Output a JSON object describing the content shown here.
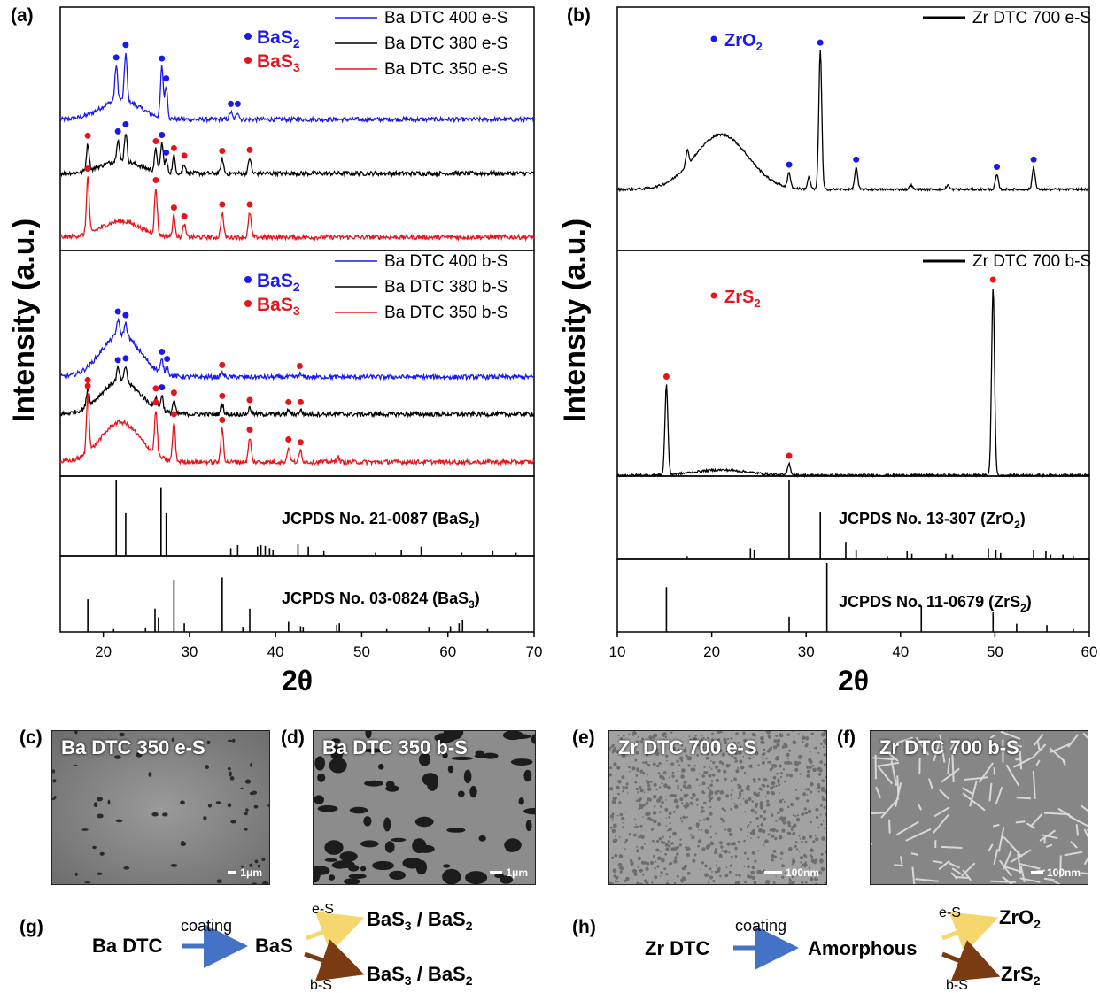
{
  "panels": {
    "a": "(a)",
    "b": "(b)",
    "c": "(c)",
    "d": "(d)",
    "e": "(e)",
    "f": "(f)",
    "g": "(g)",
    "h": "(h)"
  },
  "colors": {
    "blue": "#1a1aee",
    "red": "#e8141c",
    "black": "#000000",
    "arrow_blue": "#4472c4",
    "arrow_yellow": "#f5d76e",
    "arrow_brown": "#7a3b12"
  },
  "chart_data": [
    {
      "type": "line",
      "panel": "a",
      "ylabel": "Intensity (a.u.)",
      "xlabel": "2θ",
      "xlim": [
        15,
        70
      ],
      "xticks": [
        20,
        30,
        40,
        50,
        60,
        70
      ],
      "subplots": [
        {
          "name": "e-S",
          "legend_markers": [
            {
              "label_main": "BaS",
              "label_sub": "2",
              "color": "blue"
            },
            {
              "label_main": "BaS",
              "label_sub": "3",
              "color": "red"
            }
          ],
          "legend": [
            "Ba DTC 400 e-S",
            "Ba DTC 380 e-S",
            "Ba DTC 350 e-S"
          ],
          "series": [
            {
              "name": "Ba DTC 400 e-S",
              "color": "blue",
              "peaks": [
                [
                  21.5,
                  0.55
                ],
                [
                  22.6,
                  0.75
                ],
                [
                  26.8,
                  0.8
                ],
                [
                  27.3,
                  0.5
                ],
                [
                  34.8,
                  0.12
                ],
                [
                  35.6,
                  0.12
                ]
              ],
              "markers": [
                [
                  21.5,
                  "blue"
                ],
                [
                  22.6,
                  "blue"
                ],
                [
                  26.8,
                  "blue"
                ],
                [
                  27.3,
                  "blue"
                ],
                [
                  34.8,
                  "blue"
                ],
                [
                  35.6,
                  "blue"
                ]
              ]
            },
            {
              "name": "Ba DTC 380 e-S",
              "color": "black",
              "peaks": [
                [
                  18.2,
                  0.55
                ],
                [
                  21.7,
                  0.45
                ],
                [
                  22.6,
                  0.6
                ],
                [
                  26.1,
                  0.45
                ],
                [
                  26.8,
                  0.6
                ],
                [
                  27.3,
                  0.25
                ],
                [
                  28.2,
                  0.35
                ],
                [
                  29.4,
                  0.2
                ],
                [
                  33.8,
                  0.3
                ],
                [
                  37.0,
                  0.32
                ]
              ],
              "markers": [
                [
                  18.2,
                  "red"
                ],
                [
                  21.7,
                  "blue"
                ],
                [
                  22.6,
                  "blue"
                ],
                [
                  26.1,
                  "red"
                ],
                [
                  26.8,
                  "blue"
                ],
                [
                  27.3,
                  "blue"
                ],
                [
                  28.2,
                  "red"
                ],
                [
                  29.4,
                  "red"
                ],
                [
                  33.8,
                  "red"
                ],
                [
                  37.0,
                  "red"
                ]
              ]
            },
            {
              "name": "Ba DTC 350 e-S",
              "color": "red",
              "peaks": [
                [
                  18.2,
                  0.8
                ],
                [
                  26.1,
                  0.65
                ],
                [
                  28.2,
                  0.3
                ],
                [
                  29.4,
                  0.18
                ],
                [
                  33.8,
                  0.35
                ],
                [
                  37.0,
                  0.35
                ]
              ],
              "markers": [
                [
                  18.2,
                  "red"
                ],
                [
                  26.1,
                  "red"
                ],
                [
                  28.2,
                  "red"
                ],
                [
                  29.4,
                  "red"
                ],
                [
                  33.8,
                  "red"
                ],
                [
                  37.0,
                  "red"
                ]
              ]
            }
          ]
        },
        {
          "name": "b-S",
          "legend_markers": [
            {
              "label_main": "BaS",
              "label_sub": "2",
              "color": "blue"
            },
            {
              "label_main": "BaS",
              "label_sub": "3",
              "color": "red"
            }
          ],
          "legend": [
            "Ba DTC 400 b-S",
            "Ba DTC 380 b-S",
            "Ba DTC 350 b-S"
          ],
          "series": [
            {
              "name": "Ba DTC 400 b-S",
              "color": "blue",
              "peaks": [
                [
                  21.7,
                  0.3
                ],
                [
                  22.6,
                  0.25
                ],
                [
                  26.8,
                  0.25
                ],
                [
                  27.4,
                  0.15
                ],
                [
                  33.8,
                  0.08
                ],
                [
                  42.8,
                  0.06
                ]
              ],
              "markers": [
                [
                  21.7,
                  "blue"
                ],
                [
                  22.6,
                  "blue"
                ],
                [
                  26.8,
                  "blue"
                ],
                [
                  27.4,
                  "blue"
                ],
                [
                  33.8,
                  "red"
                ],
                [
                  42.8,
                  "red"
                ]
              ]
            },
            {
              "name": "Ba DTC 380 b-S",
              "color": "black",
              "peaks": [
                [
                  18.2,
                  0.35
                ],
                [
                  21.7,
                  0.25
                ],
                [
                  22.6,
                  0.3
                ],
                [
                  26.1,
                  0.22
                ],
                [
                  26.8,
                  0.3
                ],
                [
                  28.2,
                  0.25
                ],
                [
                  33.8,
                  0.2
                ],
                [
                  37.0,
                  0.12
                ],
                [
                  41.5,
                  0.08
                ],
                [
                  42.9,
                  0.08
                ]
              ],
              "markers": [
                [
                  18.2,
                  "red"
                ],
                [
                  21.7,
                  "blue"
                ],
                [
                  22.6,
                  "blue"
                ],
                [
                  26.1,
                  "red"
                ],
                [
                  26.8,
                  "blue"
                ],
                [
                  28.2,
                  "red"
                ],
                [
                  33.8,
                  "red"
                ],
                [
                  37.0,
                  "red"
                ],
                [
                  41.5,
                  "red"
                ],
                [
                  42.9,
                  "red"
                ]
              ]
            },
            {
              "name": "Ba DTC 350 b-S",
              "color": "red",
              "peaks": [
                [
                  18.2,
                  0.6
                ],
                [
                  26.1,
                  0.45
                ],
                [
                  28.2,
                  0.4
                ],
                [
                  33.8,
                  0.35
                ],
                [
                  37.0,
                  0.25
                ],
                [
                  41.5,
                  0.15
                ],
                [
                  42.9,
                  0.12
                ],
                [
                  47.2,
                  0.06
                ]
              ],
              "markers": [
                [
                  18.2,
                  "red"
                ],
                [
                  26.1,
                  "red"
                ],
                [
                  28.2,
                  "red"
                ],
                [
                  33.8,
                  "red"
                ],
                [
                  37.0,
                  "red"
                ],
                [
                  41.5,
                  "red"
                ],
                [
                  42.9,
                  "red"
                ]
              ]
            }
          ]
        },
        {
          "name": "ref-BaS2",
          "label_main": "JCPDS No. 21-0087 (BaS",
          "label_sub": "2",
          "label_end": ")",
          "sticks": [
            [
              21.5,
              1.0
            ],
            [
              22.6,
              0.56
            ],
            [
              26.7,
              0.9
            ],
            [
              27.3,
              0.56
            ],
            [
              34.8,
              0.1
            ],
            [
              35.6,
              0.14
            ],
            [
              37.9,
              0.12
            ],
            [
              38.3,
              0.14
            ],
            [
              38.8,
              0.13
            ],
            [
              39.3,
              0.1
            ],
            [
              39.7,
              0.08
            ],
            [
              42.6,
              0.15
            ],
            [
              43.8,
              0.12
            ],
            [
              45.6,
              0.06
            ],
            [
              51.6,
              0.04
            ],
            [
              54.6,
              0.08
            ],
            [
              56.9,
              0.12
            ],
            [
              61.6,
              0.04
            ],
            [
              65.2,
              0.06
            ],
            [
              67.9,
              0.04
            ]
          ]
        },
        {
          "name": "ref-BaS3",
          "label_main": "JCPDS No. 03-0824 (BaS",
          "label_sub": "3",
          "label_end": ")",
          "sticks": [
            [
              18.2,
              0.45
            ],
            [
              21.2,
              0.04
            ],
            [
              24.9,
              0.05
            ],
            [
              26.0,
              0.32
            ],
            [
              26.4,
              0.2
            ],
            [
              28.2,
              0.72
            ],
            [
              29.4,
              0.12
            ],
            [
              33.8,
              0.75
            ],
            [
              36.2,
              0.06
            ],
            [
              37.0,
              0.32
            ],
            [
              41.5,
              0.14
            ],
            [
              42.9,
              0.08
            ],
            [
              43.2,
              0.06
            ],
            [
              47.1,
              0.1
            ],
            [
              47.4,
              0.12
            ],
            [
              52.9,
              0.04
            ],
            [
              57.8,
              0.06
            ],
            [
              60.3,
              0.08
            ],
            [
              61.3,
              0.12
            ],
            [
              61.7,
              0.16
            ],
            [
              64.6,
              0.04
            ]
          ]
        }
      ]
    },
    {
      "type": "line",
      "panel": "b",
      "ylabel": "Intensity (a.u.)",
      "xlabel": "2θ",
      "xlim": [
        10,
        60
      ],
      "xticks": [
        10,
        20,
        30,
        40,
        50,
        60
      ],
      "subplots": [
        {
          "name": "e-S",
          "marker_label": {
            "label_main": "ZrO",
            "label_sub": "2",
            "color": "blue"
          },
          "legend": [
            "Zr DTC 700 e-S"
          ],
          "series": [
            {
              "name": "Zr DTC 700 e-S",
              "color": "black",
              "peaks": [
                [
                  17.4,
                  0.1
                ],
                [
                  28.2,
                  0.1
                ],
                [
                  30.3,
                  0.08
                ],
                [
                  31.5,
                  0.95
                ],
                [
                  35.3,
                  0.15
                ],
                [
                  41.1,
                  0.03
                ],
                [
                  45.0,
                  0.03
                ],
                [
                  50.2,
                  0.1
                ],
                [
                  54.1,
                  0.15
                ]
              ],
              "markers": [
                [
                  28.2,
                  "blue"
                ],
                [
                  31.5,
                  "blue"
                ],
                [
                  35.3,
                  "blue"
                ],
                [
                  50.2,
                  "blue"
                ],
                [
                  54.1,
                  "blue"
                ]
              ]
            }
          ]
        },
        {
          "name": "b-S",
          "marker_label": {
            "label_main": "ZrS",
            "label_sub": "2",
            "color": "red"
          },
          "legend": [
            "Zr DTC 700 b-S"
          ],
          "series": [
            {
              "name": "Zr DTC 700 b-S",
              "color": "black",
              "peaks": [
                [
                  15.2,
                  0.48
                ],
                [
                  28.2,
                  0.06
                ],
                [
                  49.8,
                  1.0
                ]
              ],
              "markers": [
                [
                  15.2,
                  "red"
                ],
                [
                  28.2,
                  "red"
                ],
                [
                  49.8,
                  "red"
                ]
              ]
            }
          ]
        },
        {
          "name": "ref-ZrO2",
          "label_main": "JCPDS No. 13-307 (ZrO",
          "label_sub": "2",
          "label_end": ")",
          "sticks": [
            [
              17.4,
              0.04
            ],
            [
              24.1,
              0.14
            ],
            [
              24.5,
              0.12
            ],
            [
              28.2,
              1.0
            ],
            [
              31.5,
              0.6
            ],
            [
              34.2,
              0.22
            ],
            [
              35.3,
              0.12
            ],
            [
              38.6,
              0.04
            ],
            [
              40.7,
              0.1
            ],
            [
              41.2,
              0.07
            ],
            [
              44.8,
              0.07
            ],
            [
              45.5,
              0.06
            ],
            [
              49.3,
              0.14
            ],
            [
              50.1,
              0.12
            ],
            [
              50.6,
              0.08
            ],
            [
              54.1,
              0.12
            ],
            [
              55.4,
              0.1
            ],
            [
              55.9,
              0.06
            ],
            [
              57.2,
              0.06
            ],
            [
              58.3,
              0.04
            ]
          ]
        },
        {
          "name": "ref-ZrS2",
          "label_main": "JCPDS No. 11-0679 (ZrS",
          "label_sub": "2",
          "label_end": ")",
          "sticks": [
            [
              15.2,
              0.65
            ],
            [
              28.2,
              0.22
            ],
            [
              32.2,
              1.0
            ],
            [
              42.2,
              0.38
            ],
            [
              49.8,
              0.28
            ],
            [
              52.3,
              0.12
            ],
            [
              55.5,
              0.1
            ],
            [
              58.3,
              0.04
            ]
          ]
        }
      ]
    }
  ],
  "sem_images": {
    "c": {
      "title": "Ba DTC 350 e-S",
      "scale": "1μm"
    },
    "d": {
      "title": "Ba DTC 350  b-S",
      "scale": "1μm"
    },
    "e": {
      "title": "Zr DTC 700 e-S",
      "scale": "100nm"
    },
    "f": {
      "title": "Zr DTC 700 b-S",
      "scale": "100nm"
    }
  },
  "scheme_g": {
    "start": "Ba DTC",
    "arrow_label": "coating",
    "middle": "BaS",
    "top_label": "e-S",
    "top_main_a": "BaS",
    "top_sub_a": "3",
    "top_sep": " / BaS",
    "top_sub_b": "2",
    "bottom_label": "b-S",
    "bottom_main_a": "BaS",
    "bottom_sub_a": "3",
    "bottom_sep": " / BaS",
    "bottom_sub_b": "2"
  },
  "scheme_h": {
    "start": "Zr DTC",
    "arrow_label": "coating",
    "middle": "Amorphous",
    "top_label": "e-S",
    "top_main": "ZrO",
    "top_sub": "2",
    "bottom_label": "b-S",
    "bottom_main": "ZrS",
    "bottom_sub": "2"
  }
}
